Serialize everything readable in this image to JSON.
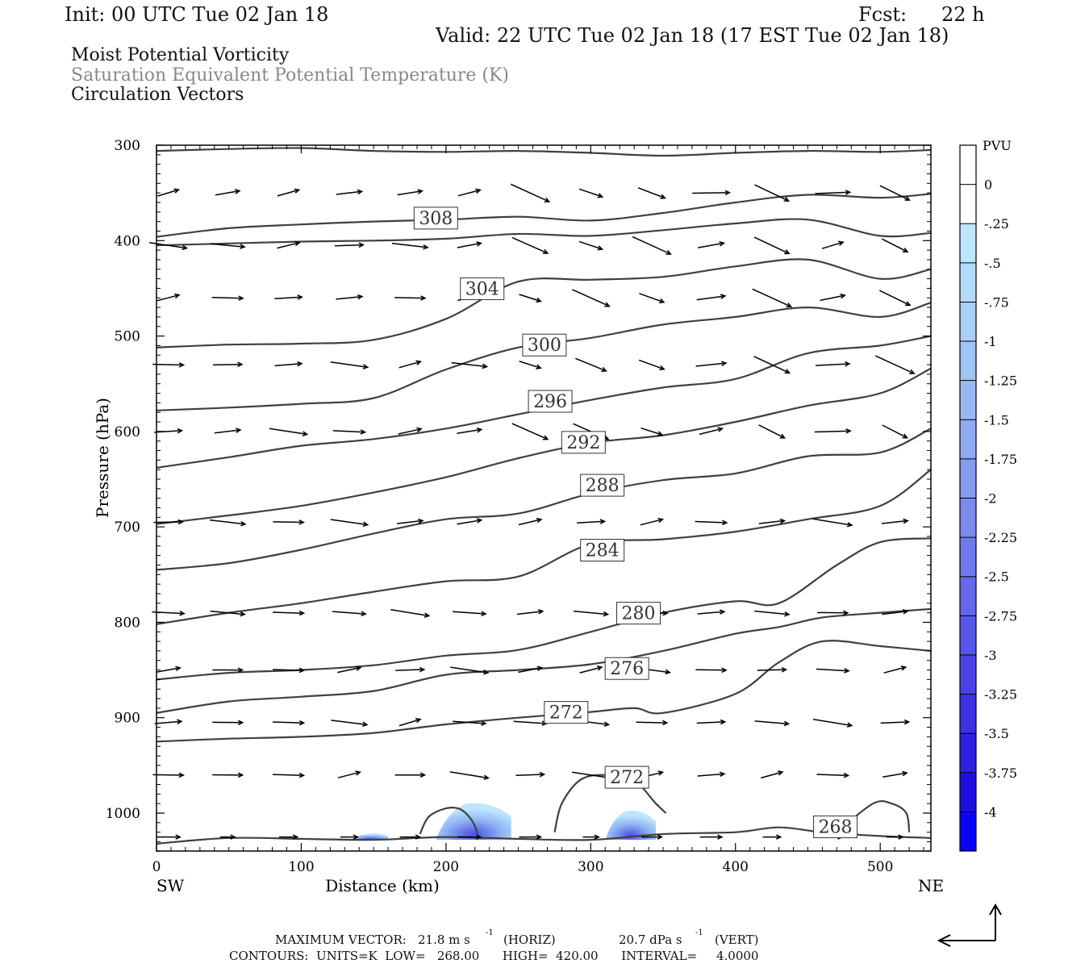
{
  "header": {
    "init": "Init: 00 UTC Tue 02 Jan 18",
    "fcst_label": "Fcst:",
    "fcst_value": "22 h",
    "valid": "Valid: 22 UTC Tue 02 Jan 18 (17 EST Tue 02 Jan 18)"
  },
  "titles": {
    "line1": "Moist Potential Vorticity",
    "line2": "Saturation Equivalent Potential Temperature (K)",
    "line3": "Circulation Vectors"
  },
  "footer": {
    "max_vector_label": "MAXIMUM VECTOR:",
    "max_vector_horiz": "21.8 m s",
    "horiz_tag": "(HORIZ)",
    "max_vector_vert": "20.7 dPa s",
    "vert_tag": "(VERT)",
    "exponent": "-1",
    "contours": "CONTOURS:  UNITS=K  LOW=   268.00      HIGH=  420.00      INTERVAL=     4.0000"
  },
  "colors": {
    "contour": "#404040",
    "vector": "#000000",
    "pv_light": "#bfe6ff",
    "pv_dark": "#0000ff"
  },
  "chart_data": {
    "type": "cross-section",
    "xlabel": "Distance (km)",
    "ylabel": "Pressure (hPa)",
    "x_start_label": "SW",
    "x_end_label": "NE",
    "xlim": [
      0,
      535
    ],
    "ylim": [
      1040,
      300
    ],
    "x_ticks": [
      0,
      100,
      200,
      300,
      400,
      500
    ],
    "y_ticks": [
      300,
      400,
      500,
      600,
      700,
      800,
      900,
      1000
    ],
    "colorbar": {
      "title": "PVU",
      "labels": [
        "0",
        "-.25",
        "-.5",
        "-.75",
        "-1",
        "-1.25",
        "-1.5",
        "-1.75",
        "-2",
        "-2.25",
        "-2.5",
        "-2.75",
        "-3",
        "-3.25",
        "-3.5",
        "-3.75",
        "-4"
      ],
      "colors": [
        "#ffffff",
        "#ffffff",
        "#bfe6ff",
        "#b3dcfb",
        "#a8d0f8",
        "#9fc4f6",
        "#98b8f4",
        "#8fa9f2",
        "#859af0",
        "#7b8bee",
        "#707aec",
        "#6468ea",
        "#5856e8",
        "#4b43e6",
        "#3e31e4",
        "#2f1ee2",
        "#1f0fe0",
        "#0a00ff"
      ]
    },
    "contour_labels": [
      {
        "value": "308",
        "x": 193,
        "p": 376
      },
      {
        "value": "304",
        "x": 225,
        "p": 450
      },
      {
        "value": "300",
        "x": 268,
        "p": 509
      },
      {
        "value": "296",
        "x": 272,
        "p": 568
      },
      {
        "value": "292",
        "x": 295,
        "p": 611
      },
      {
        "value": "288",
        "x": 308,
        "p": 656
      },
      {
        "value": "284",
        "x": 308,
        "p": 724
      },
      {
        "value": "280",
        "x": 333,
        "p": 790
      },
      {
        "value": "276",
        "x": 325,
        "p": 848
      },
      {
        "value": "272",
        "x": 283,
        "p": 894
      },
      {
        "value": "272",
        "x": 325,
        "p": 962
      },
      {
        "value": "268",
        "x": 469,
        "p": 1014
      }
    ],
    "isentropes": [
      [
        [
          0,
          306
        ],
        [
          50,
          304
        ],
        [
          100,
          303
        ],
        [
          150,
          306
        ],
        [
          200,
          307
        ],
        [
          250,
          306
        ],
        [
          300,
          308
        ],
        [
          350,
          311
        ],
        [
          400,
          308
        ],
        [
          450,
          306
        ],
        [
          500,
          307
        ],
        [
          535,
          305
        ]
      ],
      [
        [
          0,
          396
        ],
        [
          50,
          387
        ],
        [
          100,
          383
        ],
        [
          150,
          380
        ],
        [
          200,
          378
        ],
        [
          250,
          375
        ],
        [
          300,
          379
        ],
        [
          350,
          371
        ],
        [
          400,
          360
        ],
        [
          450,
          352
        ],
        [
          500,
          355
        ],
        [
          535,
          351
        ]
      ],
      [
        [
          0,
          405
        ],
        [
          50,
          403
        ],
        [
          100,
          401
        ],
        [
          150,
          400
        ],
        [
          200,
          398
        ],
        [
          250,
          393
        ],
        [
          300,
          395
        ],
        [
          350,
          389
        ],
        [
          400,
          382
        ],
        [
          450,
          378
        ],
        [
          500,
          395
        ],
        [
          535,
          392
        ]
      ],
      [
        [
          0,
          512
        ],
        [
          50,
          509
        ],
        [
          100,
          508
        ],
        [
          150,
          504
        ],
        [
          200,
          482
        ],
        [
          250,
          443
        ],
        [
          300,
          441
        ],
        [
          350,
          438
        ],
        [
          400,
          427
        ],
        [
          450,
          420
        ],
        [
          500,
          440
        ],
        [
          535,
          430
        ]
      ],
      [
        [
          0,
          578
        ],
        [
          50,
          575
        ],
        [
          100,
          571
        ],
        [
          150,
          565
        ],
        [
          200,
          535
        ],
        [
          250,
          512
        ],
        [
          300,
          502
        ],
        [
          350,
          488
        ],
        [
          400,
          480
        ],
        [
          450,
          470
        ],
        [
          500,
          480
        ],
        [
          535,
          465
        ]
      ],
      [
        [
          0,
          638
        ],
        [
          50,
          627
        ],
        [
          100,
          615
        ],
        [
          150,
          608
        ],
        [
          200,
          597
        ],
        [
          250,
          582
        ],
        [
          300,
          567
        ],
        [
          350,
          554
        ],
        [
          400,
          545
        ],
        [
          450,
          518
        ],
        [
          500,
          510
        ],
        [
          535,
          500
        ]
      ],
      [
        [
          0,
          697
        ],
        [
          50,
          688
        ],
        [
          100,
          678
        ],
        [
          150,
          664
        ],
        [
          200,
          648
        ],
        [
          250,
          628
        ],
        [
          300,
          612
        ],
        [
          350,
          604
        ],
        [
          400,
          590
        ],
        [
          450,
          573
        ],
        [
          500,
          560
        ],
        [
          535,
          534
        ]
      ],
      [
        [
          0,
          745
        ],
        [
          50,
          738
        ],
        [
          100,
          724
        ],
        [
          150,
          707
        ],
        [
          200,
          692
        ],
        [
          250,
          686
        ],
        [
          300,
          665
        ],
        [
          350,
          651
        ],
        [
          400,
          644
        ],
        [
          450,
          626
        ],
        [
          500,
          622
        ],
        [
          535,
          597
        ]
      ],
      [
        [
          0,
          802
        ],
        [
          50,
          790
        ],
        [
          100,
          780
        ],
        [
          150,
          768
        ],
        [
          200,
          757
        ],
        [
          250,
          752
        ],
        [
          300,
          718
        ],
        [
          350,
          713
        ],
        [
          400,
          705
        ],
        [
          450,
          692
        ],
        [
          500,
          678
        ],
        [
          535,
          640
        ]
      ],
      [
        [
          0,
          860
        ],
        [
          50,
          853
        ],
        [
          100,
          850
        ],
        [
          150,
          845
        ],
        [
          200,
          835
        ],
        [
          250,
          829
        ],
        [
          300,
          810
        ],
        [
          350,
          790
        ],
        [
          400,
          778
        ],
        [
          430,
          780
        ],
        [
          470,
          740
        ],
        [
          500,
          716
        ],
        [
          535,
          712
        ]
      ],
      [
        [
          0,
          895
        ],
        [
          50,
          883
        ],
        [
          100,
          878
        ],
        [
          150,
          872
        ],
        [
          200,
          855
        ],
        [
          250,
          850
        ],
        [
          300,
          844
        ],
        [
          350,
          830
        ],
        [
          400,
          812
        ],
        [
          430,
          805
        ],
        [
          460,
          795
        ],
        [
          500,
          790
        ],
        [
          535,
          786
        ]
      ],
      [
        [
          0,
          925
        ],
        [
          50,
          922
        ],
        [
          100,
          920
        ],
        [
          150,
          916
        ],
        [
          200,
          907
        ],
        [
          250,
          900
        ],
        [
          300,
          894
        ],
        [
          330,
          890
        ],
        [
          350,
          895
        ],
        [
          400,
          875
        ],
        [
          430,
          842
        ],
        [
          460,
          820
        ],
        [
          500,
          825
        ],
        [
          535,
          830
        ]
      ],
      [
        [
          0,
          1032
        ],
        [
          50,
          1026
        ],
        [
          100,
          1027
        ],
        [
          150,
          1028
        ],
        [
          200,
          1025
        ],
        [
          250,
          1027
        ],
        [
          300,
          1028
        ],
        [
          350,
          1022
        ],
        [
          400,
          1020
        ],
        [
          430,
          1015
        ],
        [
          460,
          1020
        ],
        [
          500,
          1024
        ],
        [
          535,
          1026
        ]
      ]
    ],
    "closed_contours": [
      [
        [
          182,
          1022
        ],
        [
          188,
          1004
        ],
        [
          200,
          995
        ],
        [
          210,
          996
        ],
        [
          218,
          1008
        ],
        [
          222,
          1022
        ]
      ],
      [
        [
          275,
          1020
        ],
        [
          280,
          990
        ],
        [
          293,
          965
        ],
        [
          310,
          960
        ],
        [
          330,
          966
        ],
        [
          345,
          990
        ],
        [
          352,
          1000
        ]
      ],
      [
        [
          470,
          1020
        ],
        [
          495,
          990
        ],
        [
          508,
          990
        ],
        [
          518,
          1000
        ],
        [
          520,
          1020
        ]
      ]
    ],
    "pv_patches": [
      {
        "x": [
          135,
          160
        ],
        "p": [
          1022,
          1028
        ]
      },
      {
        "x": [
          193,
          245
        ],
        "p": [
          990,
          1028
        ]
      },
      {
        "x": [
          310,
          345
        ],
        "p": [
          998,
          1028
        ]
      }
    ],
    "vectors_row_pressures": [
      350,
      405,
      460,
      530,
      600,
      695,
      790,
      850,
      905,
      960,
      1025
    ]
  }
}
